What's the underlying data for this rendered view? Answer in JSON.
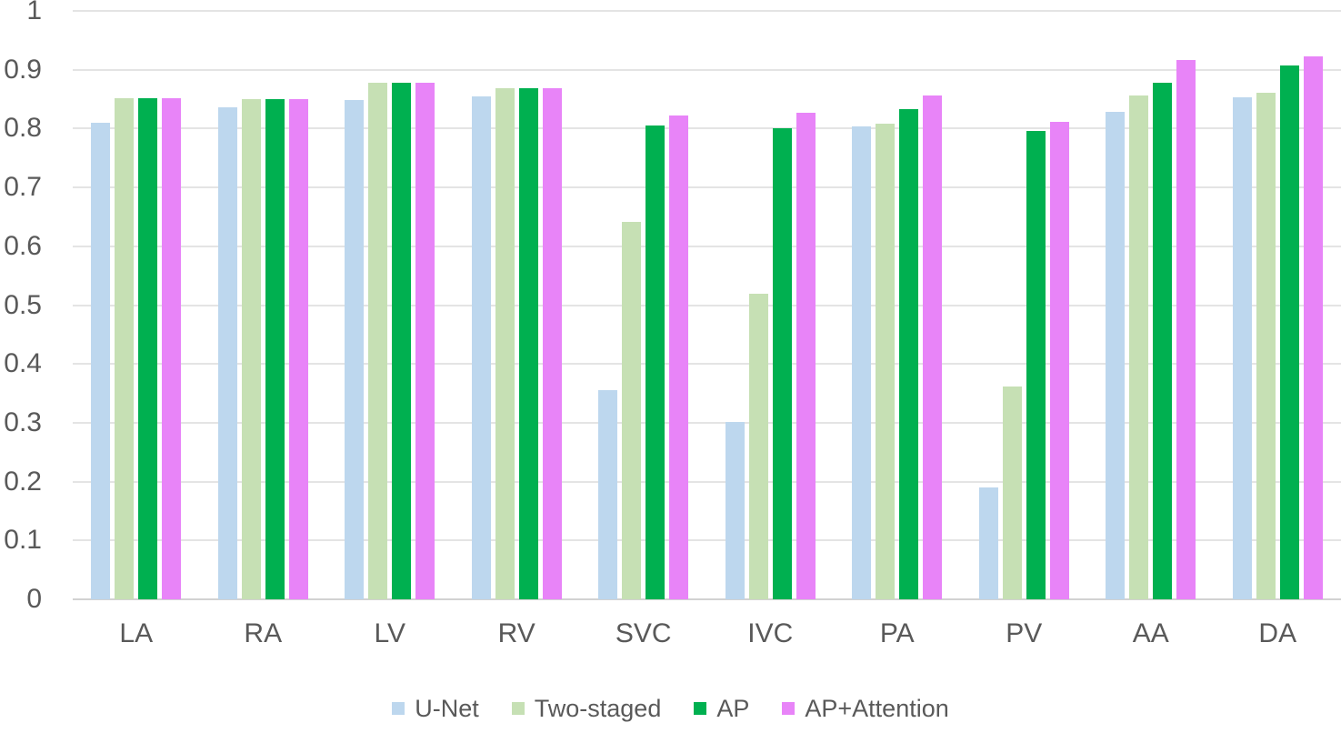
{
  "chart_data": {
    "type": "bar",
    "title": "",
    "xlabel": "",
    "ylabel": "",
    "categories": [
      "LA",
      "RA",
      "LV",
      "RV",
      "SVC",
      "IVC",
      "PA",
      "PV",
      "AA",
      "DA"
    ],
    "series": [
      {
        "name": "U-Net",
        "color": "#BDD7EE",
        "values": [
          0.81,
          0.836,
          0.848,
          0.855,
          0.355,
          0.301,
          0.804,
          0.19,
          0.829,
          0.853
        ]
      },
      {
        "name": "Two-staged",
        "color": "#C6E0B4",
        "values": [
          0.852,
          0.85,
          0.878,
          0.868,
          0.641,
          0.52,
          0.808,
          0.361,
          0.856,
          0.861
        ]
      },
      {
        "name": "AP",
        "color": "#00B050",
        "values": [
          0.852,
          0.85,
          0.878,
          0.868,
          0.806,
          0.801,
          0.833,
          0.796,
          0.878,
          0.908
        ]
      },
      {
        "name": "AP+Attention",
        "color": "#E884F8",
        "values": [
          0.852,
          0.85,
          0.878,
          0.868,
          0.822,
          0.827,
          0.857,
          0.812,
          0.917,
          0.922
        ]
      }
    ],
    "ylim": [
      0,
      1
    ],
    "yticks": [
      0,
      0.1,
      0.2,
      0.3,
      0.4,
      0.5,
      0.6,
      0.7,
      0.8,
      0.9,
      1
    ],
    "ytick_labels": [
      "0",
      "0.1",
      "0.2",
      "0.3",
      "0.4",
      "0.5",
      "0.6",
      "0.7",
      "0.8",
      "0.9",
      "1"
    ],
    "grid": true,
    "legend_position": "bottom"
  },
  "colors": {
    "background": "#FFFFFF",
    "text": "#595959",
    "gridline": "#E4E4E4",
    "axis_line": "#D2D2D2"
  }
}
